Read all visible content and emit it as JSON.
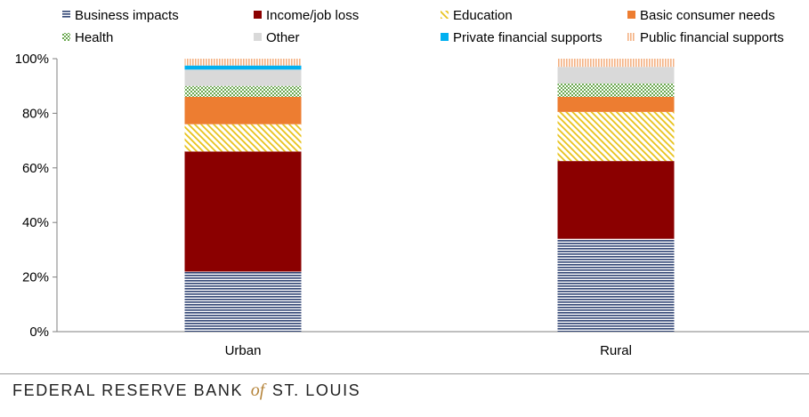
{
  "chart_data": {
    "type": "bar",
    "stacked": true,
    "categories": [
      "Urban",
      "Rural"
    ],
    "ylim": [
      0,
      100
    ],
    "yticks": [
      0,
      20,
      40,
      60,
      80,
      100
    ],
    "ytick_labels": [
      "0%",
      "20%",
      "40%",
      "60%",
      "80%",
      "100%"
    ],
    "legend_position": "top",
    "series": [
      {
        "name": "Business impacts",
        "values": [
          22,
          34
        ],
        "color": "#2f4373",
        "pattern": "horizontal-lines"
      },
      {
        "name": "Income/job loss",
        "values": [
          44,
          28.5
        ],
        "color": "#8b0000",
        "pattern": "solid"
      },
      {
        "name": "Education",
        "values": [
          10,
          18
        ],
        "color": "#e8c21a",
        "pattern": "diagonal-lines"
      },
      {
        "name": "Basic consumer needs",
        "values": [
          10,
          5.5
        ],
        "color": "#ed7d31",
        "pattern": "solid"
      },
      {
        "name": "Health",
        "values": [
          4,
          5
        ],
        "color": "#6aa84f",
        "pattern": "dots"
      },
      {
        "name": "Other",
        "values": [
          6,
          6
        ],
        "color": "#d9d9d9",
        "pattern": "solid"
      },
      {
        "name": "Private financial supports",
        "values": [
          1.5,
          0
        ],
        "color": "#00b0f0",
        "pattern": "solid"
      },
      {
        "name": "Public financial supports",
        "values": [
          2.5,
          3
        ],
        "color": "#f4b183",
        "pattern": "vertical-lines"
      }
    ]
  },
  "footer": {
    "left": "FEDERAL RESERVE BANK",
    "of": "of",
    "right": "ST. LOUIS"
  }
}
